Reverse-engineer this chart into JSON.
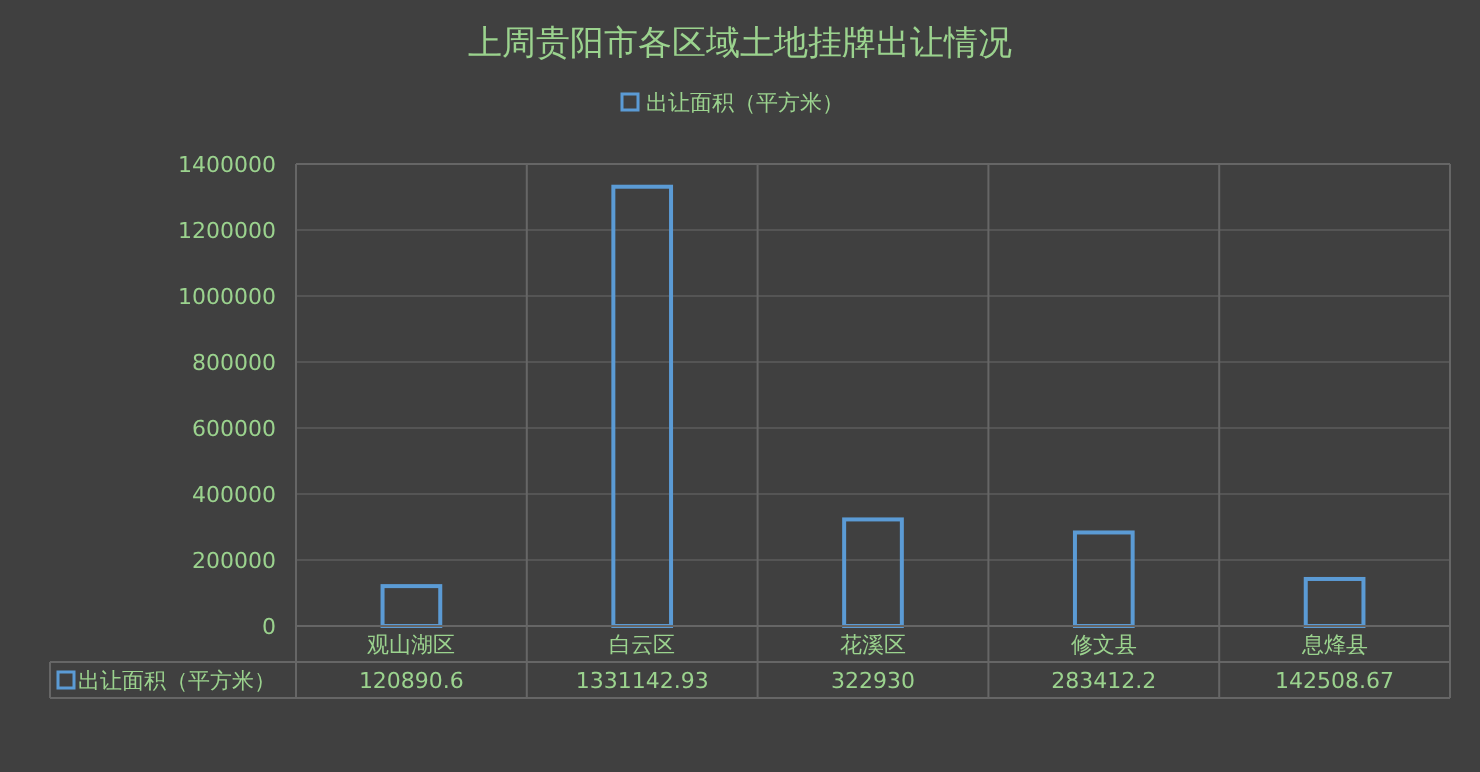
{
  "chart_data": {
    "type": "bar",
    "title": "上周贵阳市各区域土地挂牌出让情况",
    "categories": [
      "观山湖区",
      "白云区",
      "花溪区",
      "修文县",
      "息烽县"
    ],
    "series": [
      {
        "name": "出让面积（平方米）",
        "color": "#5b9bd5",
        "values": [
          120890.6,
          1331142.93,
          322930,
          283412.2,
          142508.67
        ]
      }
    ],
    "ylim": [
      0,
      1400000
    ],
    "yticks": [
      0,
      200000,
      400000,
      600000,
      800000,
      1000000,
      1200000,
      1400000
    ],
    "grid": true,
    "legend": "top",
    "data_labels": true
  }
}
